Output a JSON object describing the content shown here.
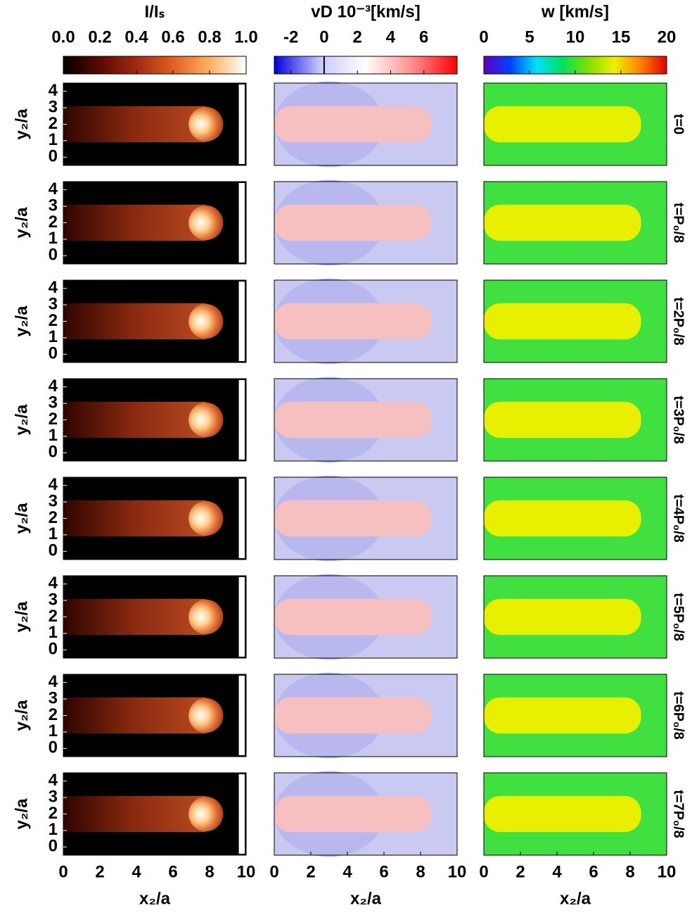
{
  "chart_data": [
    {
      "type": "image",
      "colorbar_title": "I/Iₛ",
      "colorbar_lim": [
        0,
        1
      ],
      "colorbar_ticks": [
        {
          "value": 0,
          "label": "0.0"
        },
        {
          "value": 0.2,
          "label": "0.2"
        },
        {
          "value": 0.4,
          "label": "0.4"
        },
        {
          "value": 0.6,
          "label": "0.6"
        },
        {
          "value": 0.8,
          "label": "0.8"
        },
        {
          "value": 1,
          "label": "1.0"
        }
      ],
      "colormap": [
        "#000000",
        "#5a0a00",
        "#a02a10",
        "#e06020",
        "#ffb060",
        "#ffffff"
      ],
      "xlim": [
        0,
        10
      ],
      "xticks": [
        0,
        2,
        4,
        6,
        8,
        10
      ],
      "xlabel": "x₂/a",
      "ylim": [
        -0.5,
        4.5
      ],
      "yticks": [
        0,
        1,
        2,
        3,
        4
      ],
      "ylabel": "y₂/a"
    },
    {
      "type": "image",
      "colorbar_title": "vD 10⁻³[km/s]",
      "colorbar_lim": [
        -3,
        8
      ],
      "colorbar_ticks": [
        -2,
        0,
        2,
        4,
        6
      ],
      "colormap": [
        "#0000e0",
        "#c8c8ff",
        "#ffffff",
        "#ff9090",
        "#ff0000"
      ],
      "xlim": [
        0,
        10
      ],
      "xticks": [
        0,
        2,
        4,
        6,
        8,
        10
      ],
      "xlabel": "x₂/a",
      "ylim": [
        -0.5,
        4.5
      ]
    },
    {
      "type": "image",
      "colorbar_title": "w [km/s]",
      "colorbar_lim": [
        0,
        20
      ],
      "colorbar_ticks": [
        0,
        5,
        10,
        15,
        20
      ],
      "colormap": [
        "#6000c0",
        "#0040ff",
        "#00e0ff",
        "#00e060",
        "#80e000",
        "#f0f000",
        "#ff8000",
        "#e00000"
      ],
      "xlim": [
        0,
        10
      ],
      "xticks": [
        0,
        2,
        4,
        6,
        8,
        10
      ],
      "xlabel": "x₂/a",
      "ylim": [
        -0.5,
        4.5
      ],
      "row_labels": [
        "t=0",
        "t=P₀/8",
        "t=2P₀/8",
        "t=3P₀/8",
        "t=4P₀/8",
        "t=5P₀/8",
        "t=6P₀/8",
        "t=7P₀/8"
      ]
    }
  ]
}
